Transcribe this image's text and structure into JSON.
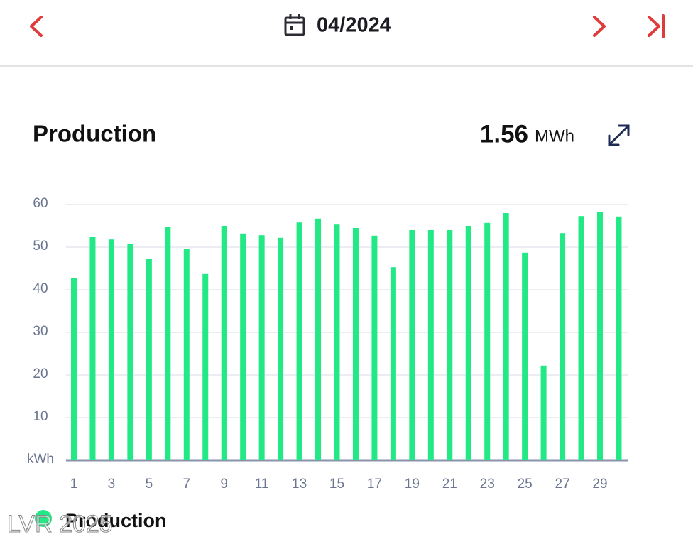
{
  "header": {
    "date": "04/2024"
  },
  "chart_data": {
    "type": "bar",
    "title": "Production",
    "total": 1.56,
    "total_unit": "MWh",
    "categories": [
      "1",
      null,
      "3",
      null,
      "5",
      null,
      "7",
      null,
      "9",
      null,
      "11",
      null,
      "13",
      null,
      "15",
      null,
      "17",
      null,
      "19",
      null,
      "21",
      null,
      "23",
      null,
      "25",
      null,
      "27",
      null,
      "29",
      null
    ],
    "series": [
      {
        "name": "Production",
        "color": "#22e886",
        "values": [
          42.8,
          52.5,
          51.8,
          50.8,
          47.2,
          54.7,
          49.5,
          43.7,
          55,
          53.2,
          52.8,
          52.2,
          55.8,
          56.7,
          55.3,
          54.5,
          52.7,
          45.3,
          54,
          54,
          54,
          55,
          55.7,
          58,
          48.7,
          22.2,
          53.3,
          57.3,
          58.3,
          57.2
        ]
      }
    ],
    "ylim": [
      0,
      60
    ],
    "yticks": [
      {
        "value": 0,
        "label": "kWh"
      },
      10,
      20,
      30,
      40,
      50,
      60
    ],
    "grid": true
  },
  "watermark": "LVR 2025"
}
